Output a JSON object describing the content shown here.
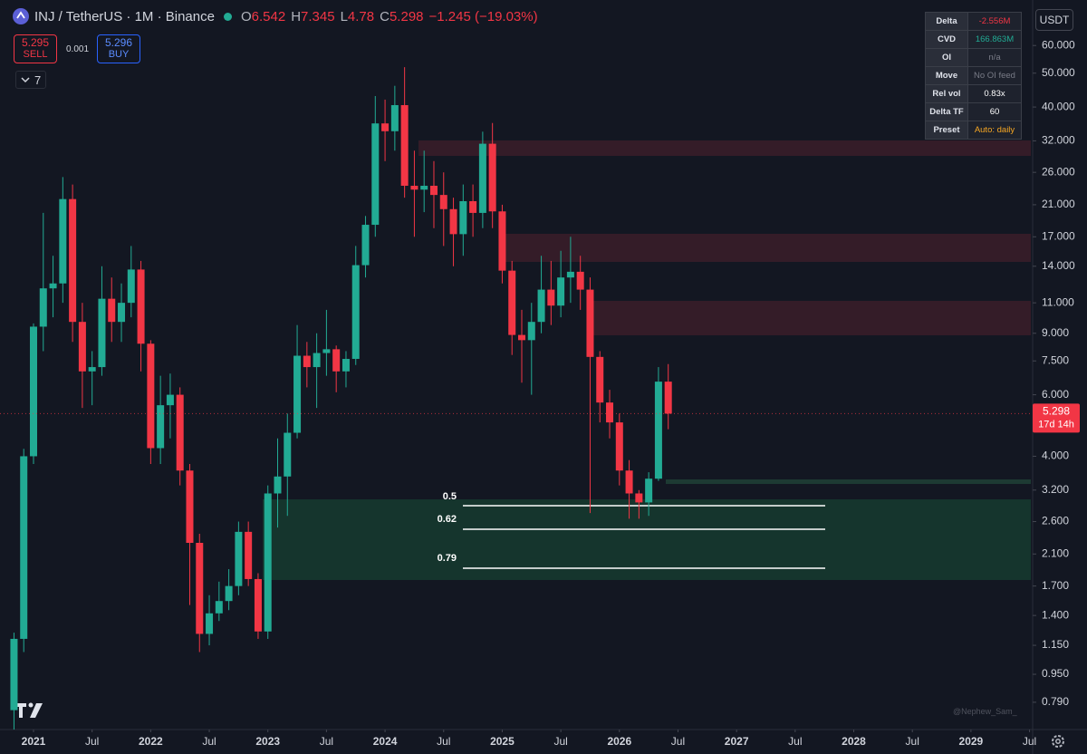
{
  "header": {
    "symbol": "INJ / TetherUS · 1M · Binance",
    "ohlc_labels": [
      "O",
      "H",
      "L",
      "C"
    ],
    "change": "−1.245 (−19.03%)"
  },
  "trade_panel": {
    "sell_price": "5.295",
    "sell": "SELL",
    "spread": "0.001",
    "buy_price": "5.296",
    "buy": "BUY"
  },
  "indicator_count": "7",
  "currency": "USDT",
  "indicator_table": {
    "rows": [
      [
        "Delta",
        "-2.556M"
      ],
      [
        "CVD",
        "166.863M"
      ],
      [
        "OI",
        "n/a"
      ],
      [
        "Move",
        "No OI feed"
      ],
      [
        "Rel vol",
        "0.83x"
      ],
      [
        "Delta TF",
        "60"
      ],
      [
        "Preset",
        "Auto: daily"
      ]
    ]
  },
  "countdown": "17d 14h",
  "watermark": "@Nephew_Sam_",
  "chart_data": {
    "type": "candlestick",
    "log_scale": true,
    "grid": false,
    "up_color": "#22ab94",
    "down_color": "#f23645",
    "x": [
      "2020-11",
      "2020-12",
      "2021-01",
      "2021-02",
      "2021-03",
      "2021-04",
      "2021-05",
      "2021-06",
      "2021-07",
      "2021-08",
      "2021-09",
      "2021-10",
      "2021-11",
      "2021-12",
      "2022-01",
      "2022-02",
      "2022-03",
      "2022-04",
      "2022-05",
      "2022-06",
      "2022-07",
      "2022-08",
      "2022-09",
      "2022-10",
      "2022-11",
      "2022-12",
      "2023-01",
      "2023-02",
      "2023-03",
      "2023-04",
      "2023-05",
      "2023-06",
      "2023-07",
      "2023-08",
      "2023-09",
      "2023-10",
      "2023-11",
      "2023-12",
      "2024-01",
      "2024-02",
      "2024-03",
      "2024-04",
      "2024-05",
      "2024-06",
      "2024-07",
      "2024-08",
      "2024-09",
      "2024-10",
      "2024-11",
      "2024-12",
      "2025-01",
      "2025-02",
      "2025-03",
      "2025-04",
      "2025-05",
      "2025-06",
      "2025-07",
      "2025-08",
      "2025-09",
      "2025-10",
      "2025-11",
      "2025-12",
      "2026-01",
      "2026-02",
      "2026-03",
      "2026-04",
      "2026-05",
      "2026-06"
    ],
    "open": [
      0.75,
      1.2,
      4.0,
      9.4,
      12.1,
      12.5,
      21.8,
      9.7,
      7.0,
      7.2,
      11.3,
      9.7,
      11,
      13.7,
      8.4,
      4.22,
      5.6,
      6.0,
      3.64,
      2.26,
      1.24,
      1.42,
      1.54,
      1.7,
      2.43,
      1.78,
      1.26,
      3.13,
      3.5,
      4.67,
      7.76,
      7.2,
      7.9,
      8.1,
      7.0,
      7.6,
      14.1,
      18.4,
      35.9,
      34.1,
      40.5,
      23.8,
      23.2,
      23.8,
      22.4,
      20.4,
      17.3,
      21.5,
      19.9,
      31.4,
      20.1,
      13.6,
      8.9,
      8.6,
      9.7,
      12.0,
      10.8,
      13.0,
      13.5,
      12.0,
      7.7,
      5.7,
      5.0,
      3.64,
      3.13,
      2.95,
      3.45,
      6.542
    ],
    "high": [
      1.25,
      4.2,
      9.6,
      19.9,
      15,
      25.2,
      24,
      11,
      8.0,
      14,
      13,
      12.5,
      16,
      14.5,
      8.6,
      6.8,
      6.9,
      6.3,
      3.8,
      2.4,
      1.6,
      1.75,
      1.9,
      2.6,
      2.6,
      1.85,
      3.3,
      4.5,
      5.3,
      9.5,
      8.5,
      9,
      10.5,
      8.3,
      8,
      16,
      19.5,
      43,
      42,
      46,
      52,
      30,
      30,
      28,
      26,
      22,
      24,
      24,
      34,
      36,
      21,
      14.5,
      10.5,
      11,
      15,
      14.5,
      15.5,
      17,
      15,
      13,
      8,
      6.2,
      5.3,
      3.9,
      3.2,
      3.6,
      7.2,
      7.345
    ],
    "low": [
      0.66,
      1.1,
      3.8,
      8.0,
      10,
      11,
      8.5,
      5.5,
      5.6,
      6.8,
      8.5,
      8.5,
      10,
      7,
      3.8,
      3.8,
      4.5,
      3.3,
      1.5,
      1.1,
      1.15,
      1.35,
      1.45,
      1.6,
      1.7,
      1.2,
      1.2,
      2.5,
      2.7,
      4.5,
      6.3,
      5.5,
      6.8,
      6.1,
      6.3,
      7.3,
      13,
      17,
      28,
      30,
      22,
      17,
      20,
      18,
      16,
      14,
      15,
      17,
      18,
      18,
      12.5,
      7.8,
      6.5,
      6.0,
      9,
      9.5,
      10,
      11,
      10.5,
      2.75,
      5,
      4.5,
      3.3,
      2.65,
      2.65,
      2.7,
      3.4,
      4.78
    ],
    "close": [
      1.2,
      4.0,
      9.4,
      12.1,
      12.5,
      21.8,
      9.7,
      7.0,
      7.2,
      11.3,
      9.7,
      11,
      13.7,
      8.4,
      4.22,
      5.6,
      6.0,
      3.64,
      2.26,
      1.24,
      1.42,
      1.54,
      1.7,
      2.43,
      1.78,
      1.26,
      3.13,
      3.5,
      4.67,
      7.76,
      7.2,
      7.9,
      8.1,
      7.0,
      7.6,
      14.1,
      18.4,
      35.9,
      34.1,
      40.5,
      23.8,
      23.2,
      23.8,
      22.4,
      20.4,
      17.3,
      21.5,
      19.9,
      31.4,
      20.1,
      13.6,
      8.9,
      8.6,
      9.7,
      12.0,
      10.8,
      13.0,
      13.5,
      12.0,
      7.7,
      5.7,
      5.0,
      3.64,
      3.13,
      2.95,
      3.45,
      6.542,
      5.298
    ],
    "ylim": [
      0.66,
      81
    ],
    "yticks": [
      {
        "value": 60,
        "label": "60.000"
      },
      {
        "value": 50,
        "label": "50.000"
      },
      {
        "value": 40,
        "label": "40.000"
      },
      {
        "value": 32,
        "label": "32.000"
      },
      {
        "value": 26,
        "label": "26.000"
      },
      {
        "value": 21,
        "label": "21.000"
      },
      {
        "value": 17,
        "label": "17.000"
      },
      {
        "value": 14,
        "label": "14.000"
      },
      {
        "value": 11,
        "label": "11.000"
      },
      {
        "value": 9,
        "label": "9.000"
      },
      {
        "value": 7.5,
        "label": "7.500"
      },
      {
        "value": 6,
        "label": "6.000"
      },
      {
        "value": 4,
        "label": "4.000"
      },
      {
        "value": 3.2,
        "label": "3.200"
      },
      {
        "value": 2.6,
        "label": "2.600"
      },
      {
        "value": 2.1,
        "label": "2.100"
      },
      {
        "value": 1.7,
        "label": "1.700"
      },
      {
        "value": 1.4,
        "label": "1.400"
      },
      {
        "value": 1.15,
        "label": "1.150"
      },
      {
        "value": 0.95,
        "label": "0.950"
      },
      {
        "value": 0.79,
        "label": "0.790"
      }
    ],
    "xticks": [
      {
        "value": "2021-01",
        "label": "2021"
      },
      {
        "value": "2021-07",
        "label": "Jul"
      },
      {
        "value": "2022-01",
        "label": "2022"
      },
      {
        "value": "2022-07",
        "label": "Jul"
      },
      {
        "value": "2023-01",
        "label": "2023"
      },
      {
        "value": "2023-07",
        "label": "Jul"
      },
      {
        "value": "2024-01",
        "label": "2024"
      },
      {
        "value": "2024-07",
        "label": "Jul"
      },
      {
        "value": "2025-01",
        "label": "2025"
      },
      {
        "value": "2025-07",
        "label": "Jul"
      },
      {
        "value": "2026-01",
        "label": "2026"
      },
      {
        "value": "2026-07",
        "label": "Jul"
      },
      {
        "value": "2027-01",
        "label": "2027"
      },
      {
        "value": "2027-07",
        "label": "Jul"
      },
      {
        "value": "2028-01",
        "label": "2028"
      },
      {
        "value": "2028-07",
        "label": "Jul"
      },
      {
        "value": "2029-01",
        "label": "2029"
      },
      {
        "value": "2029-07",
        "label": "Jul"
      }
    ],
    "annotations": [
      "0.5",
      "0.62",
      "0.79"
    ]
  }
}
